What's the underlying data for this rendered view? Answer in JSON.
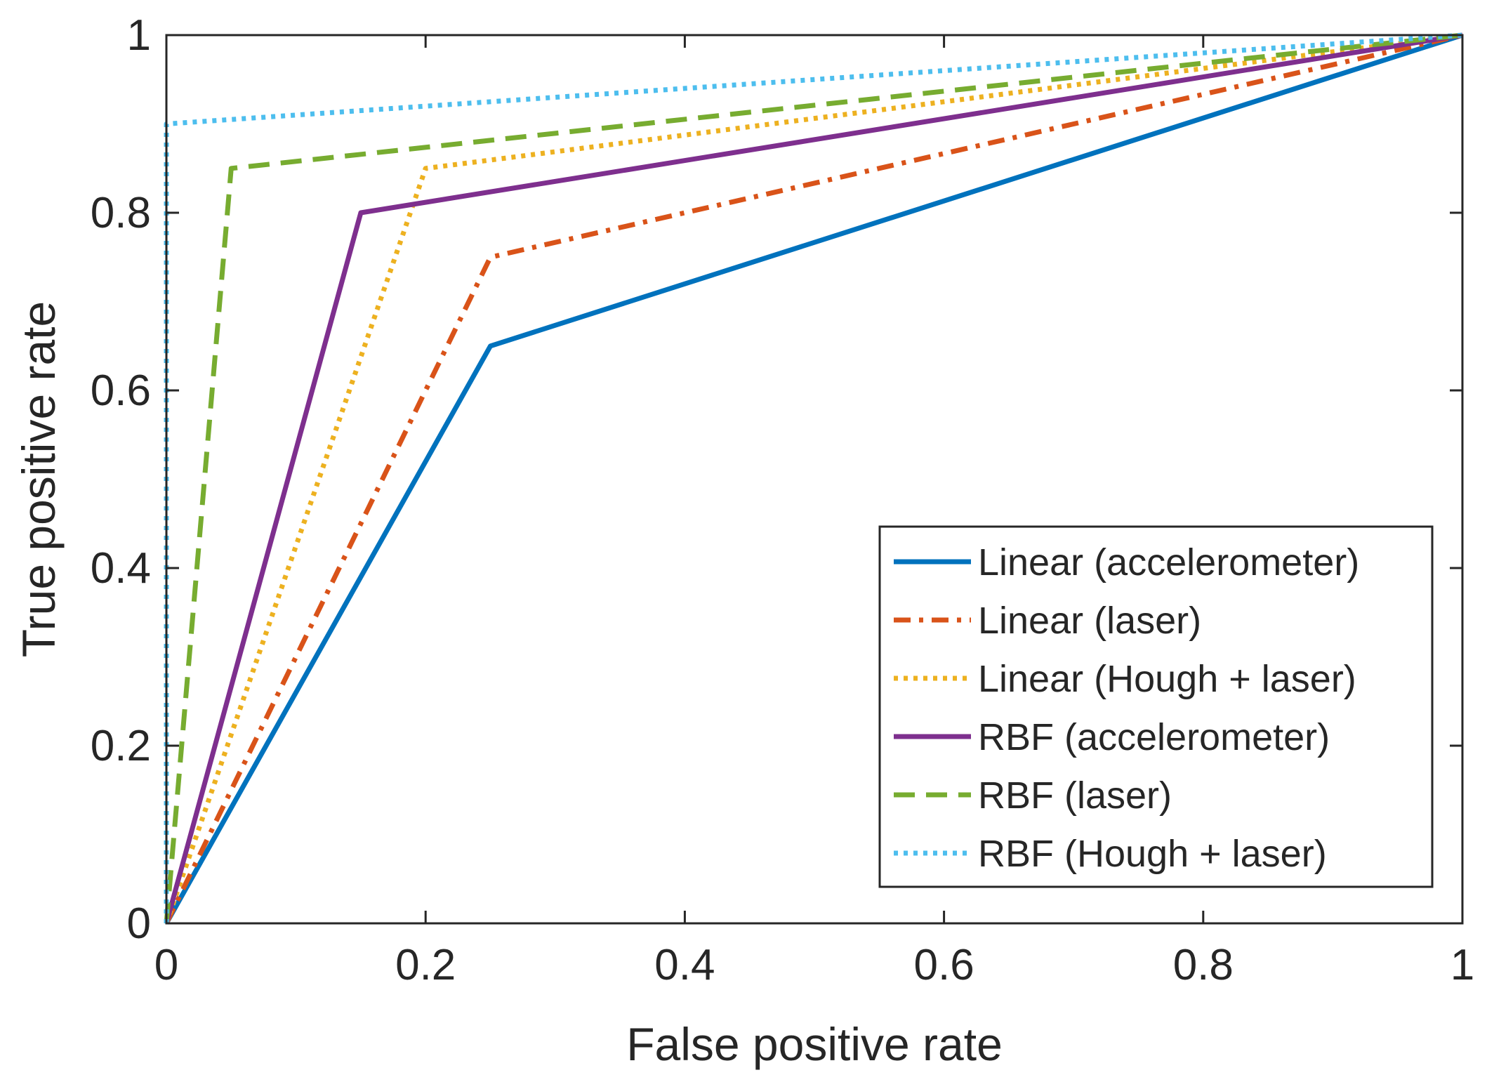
{
  "chart_data": {
    "type": "line",
    "title": "",
    "xlabel": "False positive rate",
    "ylabel": "True positive rate",
    "xlim": [
      0,
      1
    ],
    "ylim": [
      0,
      1
    ],
    "xticks": [
      0,
      0.2,
      0.4,
      0.6,
      0.8,
      1
    ],
    "yticks": [
      0,
      0.2,
      0.4,
      0.6,
      0.8,
      1
    ],
    "xtick_labels": [
      "0",
      "0.2",
      "0.4",
      "0.6",
      "0.8",
      "1"
    ],
    "ytick_labels": [
      "0",
      "0.2",
      "0.4",
      "0.6",
      "0.8",
      "1"
    ],
    "grid": false,
    "legend_position": "bottom-right",
    "series": [
      {
        "name": "Linear (accelerometer)",
        "color": "#0072BD",
        "style": "solid",
        "x": [
          0,
          0.25,
          1
        ],
        "y": [
          0,
          0.65,
          1
        ]
      },
      {
        "name": "Linear (laser)",
        "color": "#D95319",
        "style": "dashdot",
        "x": [
          0,
          0.25,
          1
        ],
        "y": [
          0,
          0.75,
          1
        ]
      },
      {
        "name": "Linear (Hough + laser)",
        "color": "#EDB120",
        "style": "dotted",
        "x": [
          0,
          0.2,
          1
        ],
        "y": [
          0,
          0.85,
          1
        ]
      },
      {
        "name": "RBF (accelerometer)",
        "color": "#7E2F8E",
        "style": "solid",
        "x": [
          0,
          0.15,
          1
        ],
        "y": [
          0,
          0.8,
          1
        ]
      },
      {
        "name": "RBF (laser)",
        "color": "#77AC30",
        "style": "dashed",
        "x": [
          0,
          0.05,
          1
        ],
        "y": [
          0,
          0.85,
          1
        ]
      },
      {
        "name": "RBF (Hough + laser)",
        "color": "#4DBEEE",
        "style": "dotted",
        "x": [
          0,
          0,
          1
        ],
        "y": [
          0,
          0.9,
          1
        ]
      }
    ]
  }
}
